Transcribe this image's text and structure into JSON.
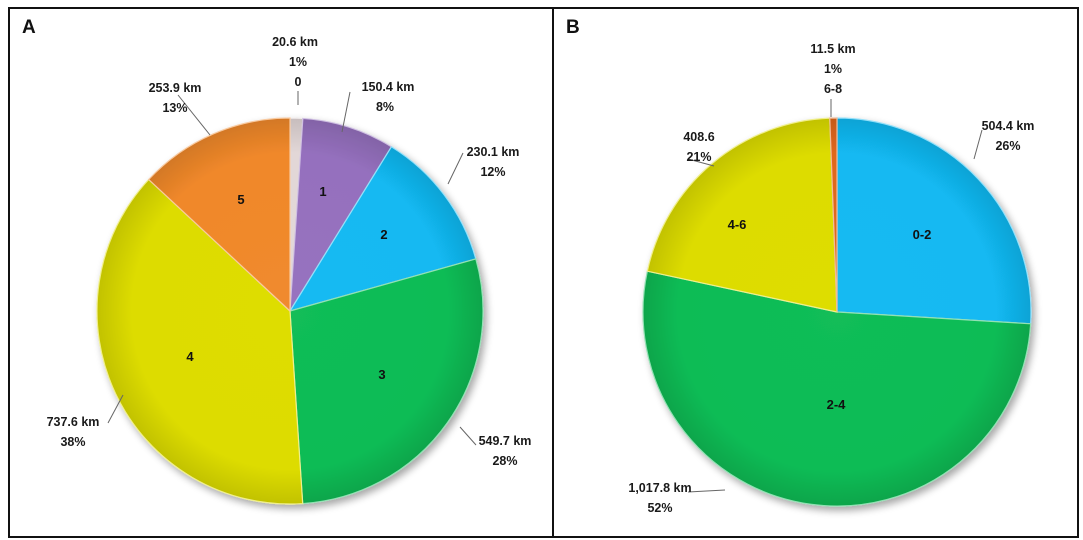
{
  "chart_data": [
    {
      "type": "pie",
      "panel_label": "A",
      "slices": [
        {
          "category": "0",
          "value": 20.6,
          "value_label": "20.6 km",
          "percent_label": "1%",
          "color": "#e2d7d7"
        },
        {
          "category": "1",
          "value": 150.4,
          "value_label": "150.4  km",
          "percent_label": "8%",
          "color": "#9570be"
        },
        {
          "category": "2",
          "value": 230.1,
          "value_label": "230.1 km",
          "percent_label": "12%",
          "color": "#12b9f2"
        },
        {
          "category": "3",
          "value": 549.7,
          "value_label": "549.7 km",
          "percent_label": "28%",
          "color": "#0dbc55"
        },
        {
          "category": "4",
          "value": 737.6,
          "value_label": "737.6 km",
          "percent_label": "38%",
          "color": "#dddc00"
        },
        {
          "category": "5",
          "value": 253.9,
          "value_label": "253.9 km",
          "percent_label": "13%",
          "color": "#f0882a"
        }
      ]
    },
    {
      "type": "pie",
      "panel_label": "B",
      "slices": [
        {
          "category": "0-2",
          "value": 504.4,
          "value_label": "504.4 km",
          "percent_label": "26%",
          "color": "#12b9f2"
        },
        {
          "category": "2-4",
          "value": 1017.8,
          "value_label": "1,017.8 km",
          "percent_label": "52%",
          "color": "#0dbc55"
        },
        {
          "category": "4-6",
          "value": 408.6,
          "value_label": "408.6",
          "percent_label": "21%",
          "color": "#dddc00"
        },
        {
          "category": "6-8",
          "value": 11.5,
          "value_label": "11.5 km",
          "percent_label": "1%",
          "color": "#e0671c"
        }
      ]
    }
  ]
}
